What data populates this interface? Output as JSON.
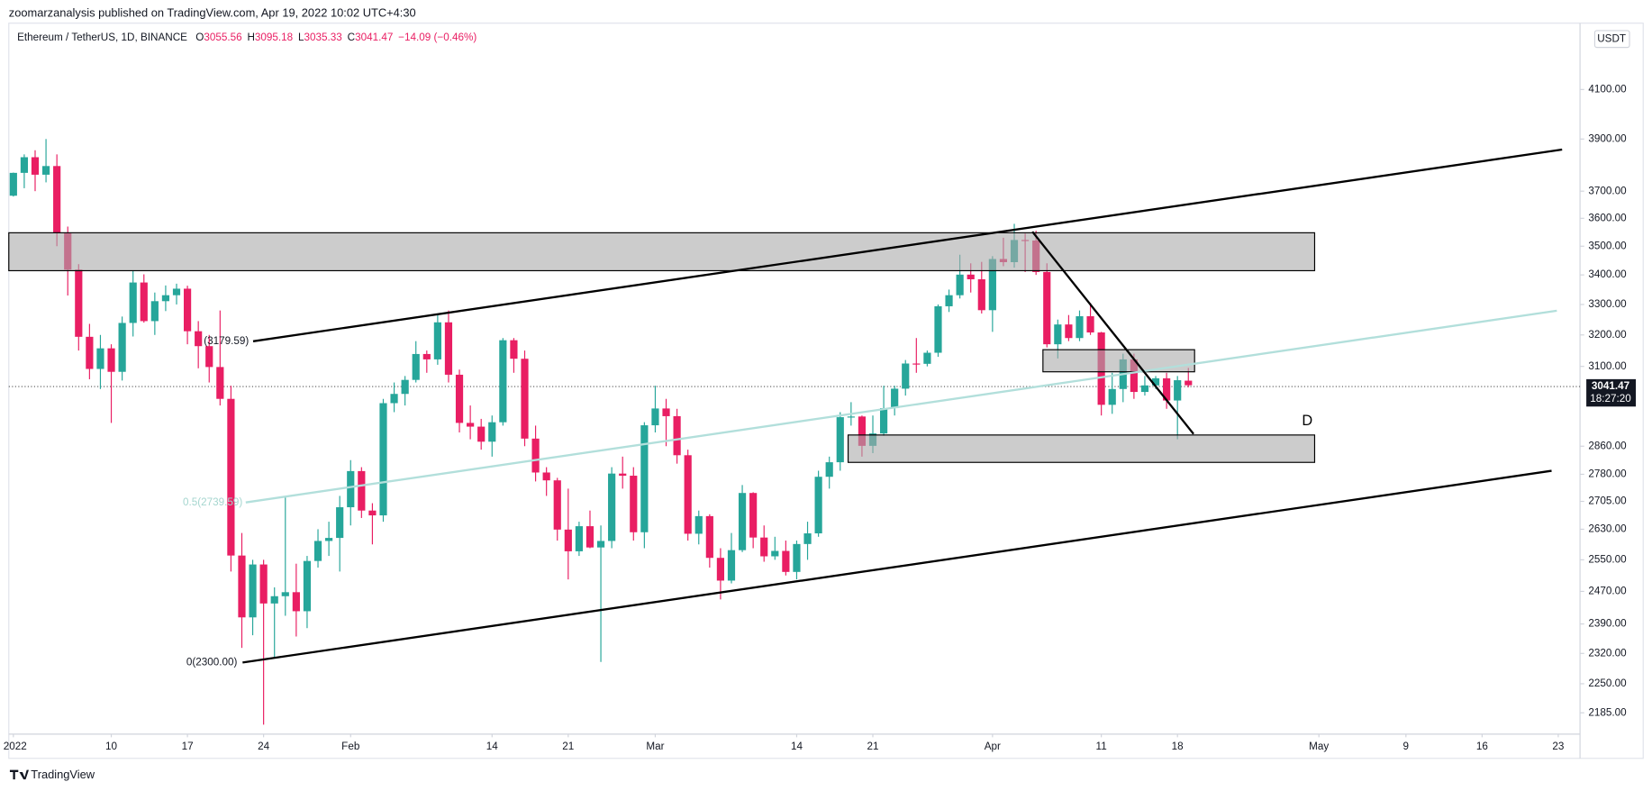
{
  "header": {
    "publisher": "zoomarzanalysis published on TradingView.com, Apr 19, 2022 10:02 UTC+4:30",
    "brand": "TradingView"
  },
  "chart_data": {
    "type": "candlestick",
    "title": "Ethereum / TetherUS, 1D, BINANCE",
    "ohlc_labels": [
      "O",
      "H",
      "L",
      "C"
    ],
    "change": "−14.09 (−0.46%)",
    "countdown": "18:27:20",
    "currency": "USDT",
    "annotations": [
      "(3179.59)",
      "0.5(2739.59)",
      "0(2300.00)",
      "D"
    ],
    "up_color": "#26a69a",
    "down_color": "#e91e63",
    "log_scale": true,
    "grid": false,
    "x": [
      "2022-01-01",
      "2022-01-02",
      "2022-01-03",
      "2022-01-04",
      "2022-01-05",
      "2022-01-06",
      "2022-01-07",
      "2022-01-08",
      "2022-01-09",
      "2022-01-10",
      "2022-01-11",
      "2022-01-12",
      "2022-01-13",
      "2022-01-14",
      "2022-01-15",
      "2022-01-16",
      "2022-01-17",
      "2022-01-18",
      "2022-01-19",
      "2022-01-20",
      "2022-01-21",
      "2022-01-22",
      "2022-01-23",
      "2022-01-24",
      "2022-01-25",
      "2022-01-26",
      "2022-01-27",
      "2022-01-28",
      "2022-01-29",
      "2022-01-30",
      "2022-01-31",
      "2022-02-01",
      "2022-02-02",
      "2022-02-03",
      "2022-02-04",
      "2022-02-05",
      "2022-02-06",
      "2022-02-07",
      "2022-02-08",
      "2022-02-09",
      "2022-02-10",
      "2022-02-11",
      "2022-02-12",
      "2022-02-13",
      "2022-02-14",
      "2022-02-15",
      "2022-02-16",
      "2022-02-17",
      "2022-02-18",
      "2022-02-19",
      "2022-02-20",
      "2022-02-21",
      "2022-02-22",
      "2022-02-23",
      "2022-02-24",
      "2022-02-25",
      "2022-02-26",
      "2022-02-27",
      "2022-02-28",
      "2022-03-01",
      "2022-03-02",
      "2022-03-03",
      "2022-03-04",
      "2022-03-05",
      "2022-03-06",
      "2022-03-07",
      "2022-03-08",
      "2022-03-09",
      "2022-03-10",
      "2022-03-11",
      "2022-03-12",
      "2022-03-13",
      "2022-03-14",
      "2022-03-15",
      "2022-03-16",
      "2022-03-17",
      "2022-03-18",
      "2022-03-19",
      "2022-03-20",
      "2022-03-21",
      "2022-03-22",
      "2022-03-23",
      "2022-03-24",
      "2022-03-25",
      "2022-03-26",
      "2022-03-27",
      "2022-03-28",
      "2022-03-29",
      "2022-03-30",
      "2022-03-31",
      "2022-04-01",
      "2022-04-02",
      "2022-04-03",
      "2022-04-04",
      "2022-04-05",
      "2022-04-06",
      "2022-04-07",
      "2022-04-08",
      "2022-04-09",
      "2022-04-10",
      "2022-04-11",
      "2022-04-12",
      "2022-04-13",
      "2022-04-14",
      "2022-04-15",
      "2022-04-16",
      "2022-04-17",
      "2022-04-18",
      "2022-04-19"
    ],
    "open": [
      3683,
      3769,
      3829,
      3762,
      3795,
      3548,
      3418,
      3194,
      3092,
      3157,
      3083,
      3239,
      3374,
      3245,
      3311,
      3331,
      3353,
      3212,
      3164,
      3098,
      3000,
      2561,
      2406,
      2538,
      2440,
      2458,
      2468,
      2421,
      2547,
      2599,
      2607,
      2689,
      2789,
      2680,
      2667,
      2987,
      3015,
      3058,
      3139,
      3122,
      3241,
      3074,
      2928,
      2917,
      2873,
      2930,
      3183,
      3124,
      2882,
      2785,
      2763,
      2629,
      2572,
      2638,
      2582,
      2599,
      2782,
      2776,
      2622,
      2921,
      2971,
      2948,
      2834,
      2618,
      2665,
      2555,
      2497,
      2575,
      2728,
      2608,
      2559,
      2573,
      2519,
      2591,
      2619,
      2773,
      2814,
      2945,
      2947,
      2861,
      2897,
      2972,
      3031,
      3109,
      3108,
      3143,
      3294,
      3331,
      3401,
      3385,
      3281,
      3455,
      3444,
      3522,
      3520,
      3410,
      3170,
      3234,
      3190,
      3261,
      3208,
      2982,
      3030,
      3122,
      3021,
      3041,
      3063,
      2995,
      3055.56
    ],
    "high": [
      3770,
      3840,
      3856,
      3900,
      3840,
      3570,
      3437,
      3236,
      3200,
      3170,
      3260,
      3415,
      3402,
      3340,
      3364,
      3370,
      3363,
      3245,
      3200,
      3280,
      3040,
      2620,
      2550,
      2550,
      2480,
      2720,
      2540,
      2560,
      2630,
      2650,
      2720,
      2820,
      2800,
      2700,
      3000,
      3050,
      3070,
      3180,
      3150,
      3270,
      3280,
      3090,
      2980,
      2940,
      2950,
      3190,
      3190,
      3150,
      2920,
      2800,
      2770,
      2740,
      2650,
      2680,
      2640,
      2800,
      2830,
      2800,
      2930,
      3040,
      3000,
      2970,
      2850,
      2680,
      2670,
      2580,
      2620,
      2750,
      2730,
      2640,
      2610,
      2600,
      2600,
      2650,
      2790,
      2830,
      2960,
      2990,
      2950,
      2950,
      3040,
      3040,
      3120,
      3190,
      3150,
      3300,
      3350,
      3470,
      3440,
      3445,
      3465,
      3530,
      3580,
      3545,
      3555,
      3440,
      3250,
      3265,
      3280,
      3305,
      3210,
      3080,
      3140,
      3140,
      3070,
      3070,
      3080,
      3070,
      3095.18
    ],
    "low": [
      3680,
      3711,
      3700,
      3733,
      3500,
      3330,
      3150,
      3060,
      3030,
      2928,
      3056,
      3195,
      3240,
      3200,
      3278,
      3300,
      3170,
      3094,
      3050,
      2980,
      2520,
      2333,
      2363,
      2159,
      2310,
      2410,
      2360,
      2380,
      2530,
      2560,
      2520,
      2640,
      2660,
      2590,
      2650,
      2960,
      2980,
      3050,
      3080,
      3105,
      3050,
      2900,
      2880,
      2850,
      2830,
      2920,
      3080,
      2860,
      2760,
      2720,
      2600,
      2500,
      2560,
      2580,
      2300,
      2580,
      2740,
      2600,
      2580,
      2900,
      2860,
      2810,
      2600,
      2590,
      2530,
      2450,
      2490,
      2570,
      2580,
      2545,
      2550,
      2510,
      2500,
      2550,
      2610,
      2740,
      2790,
      2920,
      2830,
      2840,
      2890,
      2950,
      3010,
      3080,
      3100,
      3130,
      3275,
      3320,
      3340,
      3270,
      3210,
      3430,
      3425,
      3410,
      3400,
      3160,
      3125,
      3180,
      3180,
      3200,
      2950,
      2955,
      2990,
      3000,
      3010,
      3030,
      2970,
      2880,
      3035.33
    ],
    "close": [
      3769,
      3829,
      3762,
      3795,
      3548,
      3418,
      3194,
      3092,
      3157,
      3083,
      3239,
      3374,
      3245,
      3311,
      3331,
      3353,
      3212,
      3164,
      3098,
      3000,
      2561,
      2406,
      2538,
      2440,
      2458,
      2468,
      2421,
      2547,
      2599,
      2607,
      2689,
      2789,
      2680,
      2667,
      2987,
      3015,
      3058,
      3139,
      3122,
      3241,
      3074,
      2928,
      2917,
      2873,
      2930,
      3183,
      3124,
      2882,
      2785,
      2763,
      2629,
      2572,
      2638,
      2582,
      2599,
      2782,
      2776,
      2622,
      2921,
      2971,
      2948,
      2834,
      2618,
      2665,
      2555,
      2497,
      2575,
      2728,
      2608,
      2559,
      2573,
      2519,
      2591,
      2619,
      2773,
      2814,
      2945,
      2947,
      2861,
      2897,
      2972,
      3031,
      3109,
      3108,
      3143,
      3294,
      3331,
      3401,
      3385,
      3281,
      3455,
      3444,
      3522,
      3520,
      3410,
      3170,
      3234,
      3190,
      3261,
      3208,
      2982,
      3030,
      3122,
      3021,
      3041,
      3063,
      2995,
      3057,
      3041.47
    ],
    "ylim": [
      2143,
      4370
    ],
    "yticks": [
      {
        "value": 4100,
        "label": "4100.00"
      },
      {
        "value": 3900,
        "label": "3900.00"
      },
      {
        "value": 3700,
        "label": "3700.00"
      },
      {
        "value": 3600,
        "label": "3600.00"
      },
      {
        "value": 3500,
        "label": "3500.00"
      },
      {
        "value": 3400,
        "label": "3400.00"
      },
      {
        "value": 3300,
        "label": "3300.00"
      },
      {
        "value": 3200,
        "label": "3200.00"
      },
      {
        "value": 3100,
        "label": "3100.00"
      },
      {
        "value": 2860,
        "label": "2860.00"
      },
      {
        "value": 2780,
        "label": "2780.00"
      },
      {
        "value": 2705,
        "label": "2705.00"
      },
      {
        "value": 2630,
        "label": "2630.00"
      },
      {
        "value": 2550,
        "label": "2550.00"
      },
      {
        "value": 2470,
        "label": "2470.00"
      },
      {
        "value": 2390,
        "label": "2390.00"
      },
      {
        "value": 2320,
        "label": "2320.00"
      },
      {
        "value": 2250,
        "label": "2250.00"
      },
      {
        "value": 2185,
        "label": "2185.00"
      }
    ],
    "xlim": [
      "2021-12-31",
      "2022-05-25"
    ],
    "xticks": [
      {
        "value": "2022-01-01",
        "label": "2022"
      },
      {
        "value": "2022-01-10",
        "label": "10"
      },
      {
        "value": "2022-01-17",
        "label": "17"
      },
      {
        "value": "2022-01-24",
        "label": "24"
      },
      {
        "value": "2022-02-01",
        "label": "Feb"
      },
      {
        "value": "2022-02-14",
        "label": "14"
      },
      {
        "value": "2022-02-21",
        "label": "21"
      },
      {
        "value": "2022-03-01",
        "label": "Mar"
      },
      {
        "value": "2022-03-14",
        "label": "14"
      },
      {
        "value": "2022-03-21",
        "label": "21"
      },
      {
        "value": "2022-04-01",
        "label": "Apr"
      },
      {
        "value": "2022-04-11",
        "label": "11"
      },
      {
        "value": "2022-04-18",
        "label": "18"
      },
      {
        "value": "2022-05-01",
        "label": "May"
      },
      {
        "value": "2022-05-09",
        "label": "9"
      },
      {
        "value": "2022-05-16",
        "label": "16"
      },
      {
        "value": "2022-05-23",
        "label": "23"
      }
    ]
  }
}
